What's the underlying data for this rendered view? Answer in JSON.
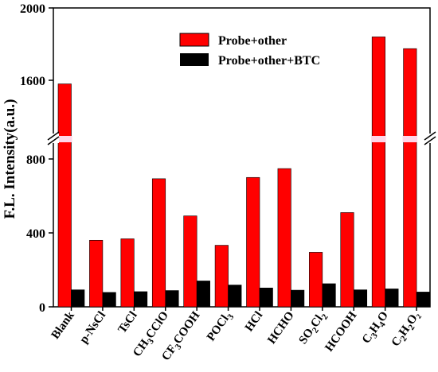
{
  "chart_data": {
    "type": "bar",
    "ylabel": "F.L. Intensity(a.u.)",
    "y_axis_break": {
      "lower_range": [
        0,
        900
      ],
      "upper_range": [
        1550,
        2000
      ]
    },
    "yticks": [
      "0",
      "400",
      "800",
      "1600",
      "2000"
    ],
    "legend_placement": "top-center",
    "categories": [
      {
        "main": "Blank",
        "sub1": "",
        "mid": "",
        "sub2": "",
        "tail": ""
      },
      {
        "main": "p-NsCl",
        "sub1": "",
        "mid": "",
        "sub2": "",
        "tail": ""
      },
      {
        "main": "TsCl",
        "sub1": "",
        "mid": "",
        "sub2": "",
        "tail": ""
      },
      {
        "main": "CH",
        "sub1": "3",
        "mid": "CClO",
        "sub2": "",
        "tail": ""
      },
      {
        "main": "CF",
        "sub1": "3",
        "mid": "COOH",
        "sub2": "",
        "tail": ""
      },
      {
        "main": "POCl",
        "sub1": "3",
        "mid": "",
        "sub2": "",
        "tail": ""
      },
      {
        "main": "HCl",
        "sub1": "",
        "mid": "",
        "sub2": "",
        "tail": ""
      },
      {
        "main": "HCHO",
        "sub1": "",
        "mid": "",
        "sub2": "",
        "tail": ""
      },
      {
        "main": "SO",
        "sub1": "2",
        "mid": "Cl",
        "sub2": "2",
        "tail": ""
      },
      {
        "main": "HCOOH",
        "sub1": "",
        "mid": "",
        "sub2": "",
        "tail": ""
      },
      {
        "main": "C",
        "sub1": "3",
        "mid": "H",
        "sub2": "4",
        "tail": "O"
      },
      {
        "main": "C",
        "sub1": "2",
        "mid": "H",
        "sub2": "2",
        "tail": "O₂"
      }
    ],
    "series": [
      {
        "name": "Probe+other",
        "color": "#ff0000",
        "values": [
          1580,
          360,
          368,
          693,
          492,
          333,
          700,
          748,
          295,
          510,
          1840,
          1775
        ]
      },
      {
        "name": "Probe+other+BTC",
        "color": "#000000",
        "values": [
          92,
          78,
          82,
          88,
          140,
          118,
          102,
          90,
          125,
          92,
          97,
          80
        ]
      }
    ]
  }
}
